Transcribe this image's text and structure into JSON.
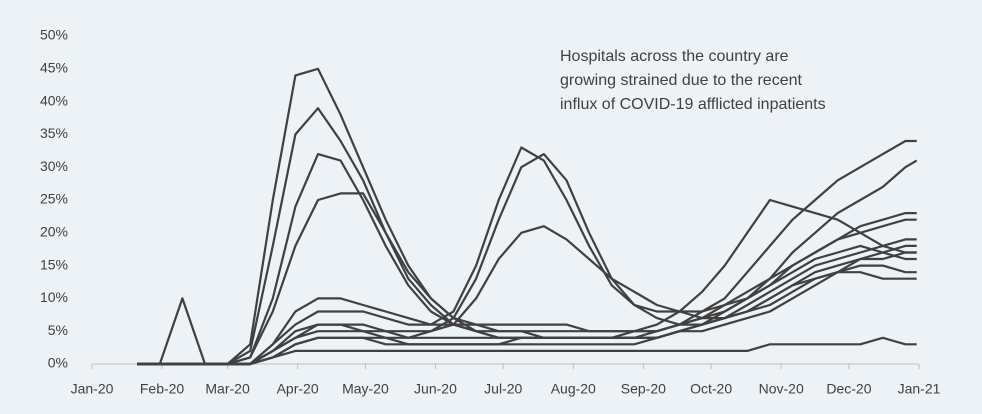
{
  "chart_data": {
    "type": "line",
    "annotation": [
      "Hospitals across the country are",
      "growing strained due to the recent",
      "influx of COVID-19 afflicted inpatients"
    ],
    "color": "#404040",
    "x": [
      20,
      30,
      40,
      50,
      60,
      70,
      80,
      90,
      100,
      110,
      120,
      130,
      140,
      150,
      160,
      170,
      180,
      190,
      200,
      210,
      220,
      230,
      240,
      250,
      260,
      270,
      280,
      290,
      300,
      310,
      320,
      330,
      340,
      350,
      360,
      365
    ],
    "xlim": [
      0,
      366
    ],
    "xticks": [
      {
        "value": 0,
        "label": "Jan-20"
      },
      {
        "value": 31,
        "label": "Feb-20"
      },
      {
        "value": 60,
        "label": "Mar-20"
      },
      {
        "value": 91,
        "label": "Apr-20"
      },
      {
        "value": 121,
        "label": "May-20"
      },
      {
        "value": 152,
        "label": "Jun-20"
      },
      {
        "value": 182,
        "label": "Jul-20"
      },
      {
        "value": 213,
        "label": "Aug-20"
      },
      {
        "value": 244,
        "label": "Sep-20"
      },
      {
        "value": 274,
        "label": "Oct-20"
      },
      {
        "value": 305,
        "label": "Nov-20"
      },
      {
        "value": 335,
        "label": "Dec-20"
      },
      {
        "value": 366,
        "label": "Jan-21"
      }
    ],
    "ylim": [
      0,
      50
    ],
    "yticks": [
      {
        "value": 0,
        "label": "0%"
      },
      {
        "value": 5,
        "label": "5%"
      },
      {
        "value": 10,
        "label": "10%"
      },
      {
        "value": 15,
        "label": "15%"
      },
      {
        "value": 20,
        "label": "20%"
      },
      {
        "value": 25,
        "label": "25%"
      },
      {
        "value": 30,
        "label": "30%"
      },
      {
        "value": 35,
        "label": "35%"
      },
      {
        "value": 40,
        "label": "40%"
      },
      {
        "value": 45,
        "label": "45%"
      },
      {
        "value": 50,
        "label": "50%"
      }
    ],
    "series": [
      {
        "values": [
          0,
          0,
          0,
          0,
          0,
          3,
          25,
          44,
          45,
          38,
          30,
          22,
          15,
          10,
          7,
          5,
          4,
          4,
          4,
          4,
          4,
          4,
          4,
          4,
          5,
          5,
          6,
          7,
          8,
          10,
          12,
          14,
          16,
          17,
          18,
          18
        ]
      },
      {
        "values": [
          0,
          0,
          0,
          0,
          0,
          2,
          18,
          35,
          39,
          34,
          28,
          20,
          13,
          9,
          6,
          5,
          4,
          4,
          4,
          4,
          4,
          4,
          4,
          4,
          5,
          6,
          7,
          9,
          11,
          13,
          15,
          16,
          17,
          18,
          19,
          19
        ]
      },
      {
        "values": [
          0,
          0,
          0,
          0,
          0,
          1,
          10,
          24,
          32,
          31,
          25,
          18,
          12,
          8,
          6,
          5,
          5,
          5,
          4,
          4,
          4,
          4,
          4,
          4,
          5,
          6,
          7,
          8,
          10,
          12,
          14,
          15,
          16,
          16,
          17,
          17
        ]
      },
      {
        "values": [
          0,
          0,
          0,
          0,
          0,
          0,
          3,
          6,
          8,
          8,
          8,
          7,
          6,
          6,
          8,
          15,
          25,
          33,
          31,
          25,
          18,
          12,
          9,
          8,
          8,
          8,
          9,
          10,
          12,
          14,
          16,
          17,
          18,
          17,
          16,
          16
        ]
      },
      {
        "values": [
          0,
          0,
          0,
          0,
          0,
          0,
          2,
          5,
          6,
          6,
          5,
          5,
          4,
          5,
          7,
          13,
          22,
          30,
          32,
          28,
          20,
          13,
          9,
          7,
          6,
          6,
          7,
          8,
          10,
          12,
          13,
          14,
          14,
          13,
          13,
          13
        ]
      },
      {
        "values": [
          0,
          0,
          0,
          0,
          0,
          0,
          2,
          4,
          5,
          5,
          5,
          4,
          4,
          4,
          4,
          4,
          4,
          4,
          4,
          4,
          4,
          4,
          4,
          5,
          6,
          8,
          10,
          14,
          18,
          22,
          25,
          28,
          30,
          32,
          34,
          34
        ]
      },
      {
        "values": [
          0,
          0,
          0,
          0,
          0,
          0,
          1,
          3,
          4,
          4,
          4,
          4,
          3,
          3,
          3,
          3,
          3,
          4,
          4,
          4,
          4,
          4,
          5,
          6,
          8,
          11,
          15,
          20,
          25,
          24,
          23,
          22,
          20,
          18,
          17,
          17
        ]
      },
      {
        "values": [
          0,
          0,
          0,
          0,
          0,
          0,
          1,
          3,
          4,
          4,
          4,
          3,
          3,
          3,
          3,
          3,
          3,
          3,
          3,
          3,
          3,
          3,
          3,
          4,
          5,
          6,
          8,
          10,
          13,
          17,
          20,
          23,
          25,
          27,
          30,
          31
        ]
      },
      {
        "values": [
          0,
          0,
          0,
          0,
          0,
          0,
          2,
          4,
          6,
          6,
          6,
          5,
          5,
          5,
          6,
          10,
          16,
          20,
          21,
          19,
          16,
          13,
          11,
          9,
          8,
          7,
          7,
          8,
          9,
          11,
          13,
          14,
          15,
          15,
          14,
          14
        ]
      },
      {
        "values": [
          0,
          0,
          0,
          0,
          0,
          0,
          1,
          2,
          2,
          2,
          2,
          2,
          2,
          2,
          2,
          2,
          2,
          2,
          2,
          2,
          2,
          2,
          2,
          2,
          2,
          2,
          2,
          2,
          3,
          3,
          3,
          3,
          3,
          4,
          3,
          3
        ]
      },
      {
        "values": [
          0,
          0,
          0,
          0,
          0,
          1,
          8,
          18,
          25,
          26,
          26,
          20,
          14,
          10,
          7,
          6,
          5,
          5,
          5,
          5,
          5,
          5,
          5,
          5,
          6,
          7,
          9,
          11,
          13,
          15,
          17,
          19,
          20,
          21,
          22,
          22
        ]
      },
      {
        "values": [
          0,
          0,
          10,
          0,
          0,
          0,
          3,
          8,
          10,
          10,
          9,
          8,
          7,
          6,
          6,
          6,
          6,
          6,
          6,
          6,
          5,
          5,
          5,
          5,
          6,
          7,
          8,
          10,
          12,
          15,
          17,
          19,
          21,
          22,
          23,
          23
        ]
      }
    ]
  }
}
